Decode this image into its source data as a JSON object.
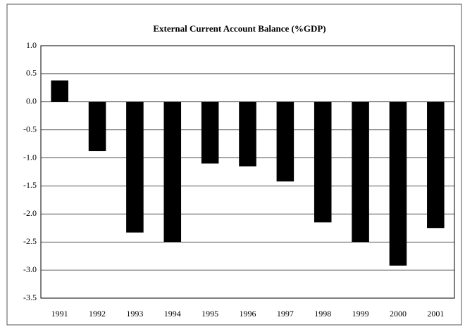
{
  "chart_data": {
    "type": "bar",
    "title": "External Current Account Balance (%GDP)",
    "categories": [
      "1991",
      "1992",
      "1993",
      "1994",
      "1995",
      "1996",
      "1997",
      "1998",
      "1999",
      "2000",
      "2001"
    ],
    "values": [
      0.38,
      -0.88,
      -2.33,
      -2.5,
      -1.1,
      -1.15,
      -1.42,
      -2.15,
      -2.5,
      -2.92,
      -2.25
    ],
    "color": "#000000",
    "ylim": [
      -3.5,
      1.0
    ],
    "yticks": [
      {
        "value": 1,
        "label": "1.0"
      },
      0.5,
      {
        "value": 0,
        "label": "0.0"
      },
      -0.5,
      {
        "value": -1,
        "label": "-1.0"
      },
      -1.5,
      {
        "value": -2,
        "label": "-2.0"
      },
      -2.5,
      {
        "value": -3,
        "label": "-3.0"
      },
      -3.5
    ],
    "grid": true
  }
}
